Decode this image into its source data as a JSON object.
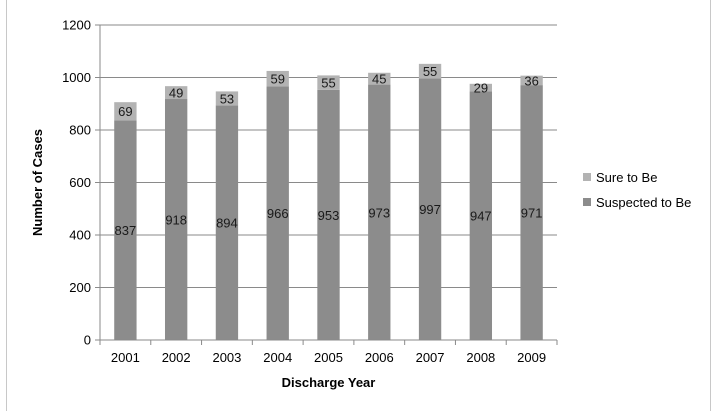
{
  "chart_data": {
    "type": "bar",
    "stacked": true,
    "title": "",
    "xlabel": "Discharge Year",
    "ylabel": "Number of Cases",
    "categories": [
      "2001",
      "2002",
      "2003",
      "2004",
      "2005",
      "2006",
      "2007",
      "2008",
      "2009"
    ],
    "series": [
      {
        "name": "Suspected to Be",
        "color": "#8c8c8c",
        "values": [
          837,
          918,
          894,
          966,
          953,
          973,
          997,
          947,
          971
        ]
      },
      {
        "name": "Sure to Be",
        "color": "#b3b3b3",
        "values": [
          69,
          49,
          53,
          59,
          55,
          45,
          55,
          29,
          36
        ]
      }
    ],
    "ylim": [
      0,
      1200
    ],
    "yticks": [
      0,
      200,
      400,
      600,
      800,
      1000,
      1200
    ],
    "grid": true,
    "legend_position": "right"
  }
}
